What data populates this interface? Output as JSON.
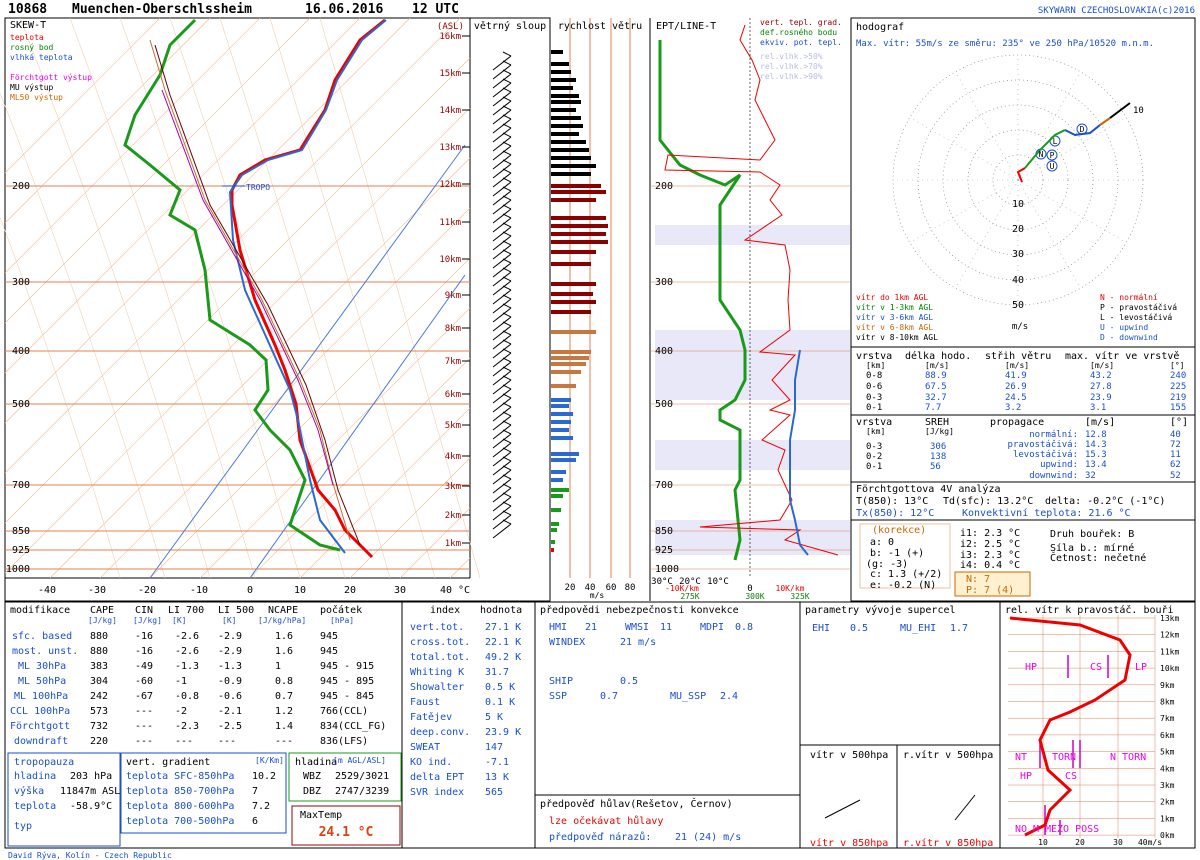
{
  "header": {
    "station": "10868",
    "location": "Muenchen-Oberschlssheim",
    "date": "16.06.2016",
    "time": "12 UTC",
    "credit": "SKYWARN CZECHOSLOVAKIA(c)2016"
  },
  "skew_t": {
    "title": "SKEW-T",
    "asl": "(ASL)",
    "legend": [
      "teplota",
      "rosný bod",
      "vlhká teplota",
      "Förchtgott výstup",
      "MU výstup",
      "ML50 výstup"
    ],
    "tropo": "TROPO",
    "heights": [
      "16km",
      "15km",
      "14km",
      "13km",
      "12km",
      "11km",
      "10km",
      "9km",
      "8km",
      "7km",
      "6km",
      "5km",
      "4km",
      "3km",
      "2km",
      "1km"
    ],
    "pressures": [
      "200",
      "300",
      "400",
      "500",
      "700",
      "850",
      "925",
      "1000"
    ],
    "temperatures": [
      "-40",
      "-30",
      "-20",
      "-10",
      "0",
      "10",
      "20",
      "30",
      "40 °C"
    ]
  },
  "wind_column": {
    "title": "větrný sloup"
  },
  "wind_speed": {
    "title": "rychlost větru",
    "ticks": [
      "20",
      "40",
      "60",
      "80"
    ],
    "unit": "m/s"
  },
  "ept": {
    "title": "EPT/LINE-T",
    "legend": [
      "vert. tepl. grad.",
      "def.rosného bodu",
      "ekviv. pot. tepl.",
      "rel.vlhk.>50%",
      "rel.vlhk.>70%",
      "rel.vlhk.>90%"
    ],
    "axis": [
      "30°C",
      "20°C",
      "10°C",
      "-10K/km",
      "0",
      "10K/km",
      "275K",
      "300K",
      "325K"
    ]
  },
  "hodograph": {
    "title": "hodograf",
    "max_wind": "Max. vítr: 55m/s ze směru: 235° ve 250 hPa/10520 m.n.m.",
    "rings": [
      "10",
      "20",
      "30",
      "40",
      "50"
    ],
    "unit": "m/s",
    "end_label": "10",
    "markers": [
      "L",
      "N",
      "P",
      "U",
      "D"
    ],
    "layers": [
      "vítr do 1km AGL",
      "vítr v 1-3km AGL",
      "vítr v 3-6km AGL",
      "vítr v 6-8km AGL",
      "vítr v 8-10km AGL"
    ],
    "storms": [
      "N - normální",
      "P - pravostáčivá",
      "L - levostáčivá",
      "U - upwind",
      "D - downwind"
    ]
  },
  "shear_table": {
    "headers": [
      "vrstva",
      "délka hodo.",
      "střih větru",
      "max. vítr ve vrstvě"
    ],
    "units": [
      "[km]",
      "[m/s]",
      "[m/s]",
      "[m/s]",
      "[°]"
    ],
    "rows": [
      [
        "0-8",
        "88.9",
        "41.9",
        "43.2",
        "240"
      ],
      [
        "0-6",
        "67.5",
        "26.9",
        "27.8",
        "225"
      ],
      [
        "0-3",
        "32.7",
        "24.5",
        "23.9",
        "219"
      ],
      [
        "0-1",
        "7.7",
        "3.2",
        "3.1",
        "155"
      ]
    ]
  },
  "sreh_table": {
    "headers": [
      "vrstva",
      "SREH",
      "propagace"
    ],
    "units": [
      "[km]",
      "[J/kg]",
      "[m/s]",
      "[°]"
    ],
    "rows": [
      [
        "0-3",
        "306"
      ],
      [
        "0-2",
        "138"
      ],
      [
        "0-1",
        "56"
      ]
    ],
    "propagation": [
      [
        "normální:",
        "12.8",
        "40"
      ],
      [
        "pravostáčivá:",
        "14.3",
        "72"
      ],
      [
        "levostáčivá:",
        "15.3",
        "11"
      ],
      [
        "upwind:",
        "13.4",
        "62"
      ],
      [
        "downwind:",
        "32",
        "52"
      ]
    ]
  },
  "forchtgott": {
    "title": "Förchtgottova 4V analýza",
    "lines": [
      "T(850): 13°C",
      "Td(sfc): 13.2°C",
      "delta: -0.2°C (-1°C)",
      "Tx(850): 12°C",
      "Konvektivní teplota: 21.6 °C"
    ],
    "correction_title": "(korekce)",
    "corrections": [
      "a: 0",
      "b: -1 (+)",
      "(g: -3)",
      "c: 1.3 (+/2)",
      "e: -0.2 (N)"
    ],
    "indices": [
      "i1: 2.3 °C",
      "i2: 2.5 °C",
      "i3: 2.3 °C",
      "i4: 0.4 °C"
    ],
    "result": [
      "N: 7",
      "P: 7 (4)"
    ],
    "storm": [
      "Druh bouřek: B",
      "Síla b.: mírné",
      "Četnost: nečetné"
    ]
  },
  "modification_table": {
    "headers": [
      "modifikace",
      "CAPE",
      "CIN",
      "LI 700",
      "LI 500",
      "NCAPE",
      "počátek"
    ],
    "units": [
      "[J/kg]",
      "[J/kg]",
      "[K]",
      "[K]",
      "[J/kg/hPa]",
      "[hPa]"
    ],
    "rows": [
      [
        "sfc. based",
        "880",
        "-16",
        "-2.6",
        "-2.9",
        "1.6",
        "945"
      ],
      [
        "most. unst.",
        "880",
        "-16",
        "-2.6",
        "-2.9",
        "1.6",
        "945"
      ],
      [
        "ML 30hPa",
        "383",
        "-49",
        "-1.3",
        "-1.3",
        "1",
        "945 - 915"
      ],
      [
        "ML 50hPa",
        "304",
        "-60",
        "-1",
        "-0.9",
        "0.8",
        "945 - 895"
      ],
      [
        "ML 100hPa",
        "242",
        "-67",
        "-0.8",
        "-0.6",
        "0.7",
        "945 - 845"
      ],
      [
        "CCL 100hPa",
        "573",
        "---",
        "-2",
        "-2.1",
        "1.2",
        "766(CCL)"
      ],
      [
        "Förchtgott",
        "732",
        "---",
        "-2.3",
        "-2.5",
        "1.4",
        "834(CCL_FG)"
      ],
      [
        "downdraft",
        "220",
        "---",
        "---",
        "---",
        "---",
        "836(LFS)"
      ]
    ]
  },
  "tropopause": {
    "title": "tropopauza",
    "rows": [
      [
        "hladina",
        "203 hPa"
      ],
      [
        "výška",
        "11847m ASL"
      ],
      [
        "teplota",
        "-58.9°C"
      ],
      [
        "typ"
      ]
    ]
  },
  "vertical_gradient": {
    "title": "vert. gradient",
    "unit": "[K/Km]",
    "rows": [
      [
        "teplota SFC-850hPa",
        "10.2"
      ],
      [
        "teplota 850-700hPa",
        "7"
      ],
      [
        "teplota 800-600hPa",
        "7.2"
      ],
      [
        "teplota 700-500hPa",
        "6"
      ]
    ]
  },
  "levels": {
    "title": "hladina",
    "unit": "[m AGL/ASL]",
    "rows": [
      [
        "WBZ",
        "2529/3021"
      ],
      [
        "DBZ",
        "2747/3239"
      ]
    ]
  },
  "max_temp": {
    "title": "MaxTemp",
    "value": "24.1 °C"
  },
  "index_table": {
    "headers": [
      "index",
      "hodnota"
    ],
    "rows": [
      [
        "vert.tot.",
        "27.1 K"
      ],
      [
        "cross.tot.",
        "22.1 K"
      ],
      [
        "total.tot.",
        "49.2 K"
      ],
      [
        "Whiting K",
        "31.7"
      ],
      [
        "Showalter",
        "0.5 K"
      ],
      [
        "Faust",
        "0.1 K"
      ],
      [
        "Fatějev",
        "5 K"
      ],
      [
        "deep.conv.",
        "23.9 K"
      ],
      [
        "SWEAT",
        "147"
      ],
      [
        "KO ind.",
        "-7.1"
      ],
      [
        "delta EPT",
        "13 K"
      ],
      [
        "SVR index",
        "565"
      ]
    ]
  },
  "convection_forecast": {
    "title": "předpovědi nebezpečnosti konvekce",
    "items": [
      [
        "HMI",
        "21"
      ],
      [
        "WMSI",
        "11"
      ],
      [
        "MDPI",
        "0.8"
      ],
      [
        "WINDEX",
        "21 m/s"
      ],
      [
        "SHIP",
        "0.5"
      ],
      [
        "SSP",
        "0.7"
      ],
      [
        "MU_SSP",
        "2.4"
      ]
    ]
  },
  "hail": {
    "title": "předpověď hůlav(Rešetov, Černov)",
    "verdict": "lze očekávat hůlavy",
    "gust_label": "předpověď nárazů:",
    "gust_value": "21 (24) m/s"
  },
  "supercell": {
    "title": "parametry vývoje supercel",
    "items": [
      [
        "EHI",
        "0.5"
      ],
      [
        "MU_EHI",
        "1.7"
      ]
    ],
    "panels": [
      "vítr v 500hpa",
      "r.vítr v 500hpa",
      "vítr v 850hpa",
      "r.vítr v 850hpa"
    ]
  },
  "relative_wind": {
    "title": "rel. vítr k pravostáč. bouři",
    "heights": [
      "13km",
      "12km",
      "11km",
      "10km",
      "9km",
      "8km",
      "7km",
      "6km",
      "5km",
      "4km",
      "3km",
      "2km",
      "1km",
      "0km"
    ],
    "speeds": [
      "10",
      "20",
      "30",
      "40m/s"
    ],
    "regimes": [
      "HP",
      "CS",
      "LP",
      "NT",
      "TORN",
      "N TORN",
      "HP",
      "CS",
      "NO M",
      "MEZO POSS"
    ]
  },
  "footer": "David Rýva, Kolín - Czech Republic"
}
